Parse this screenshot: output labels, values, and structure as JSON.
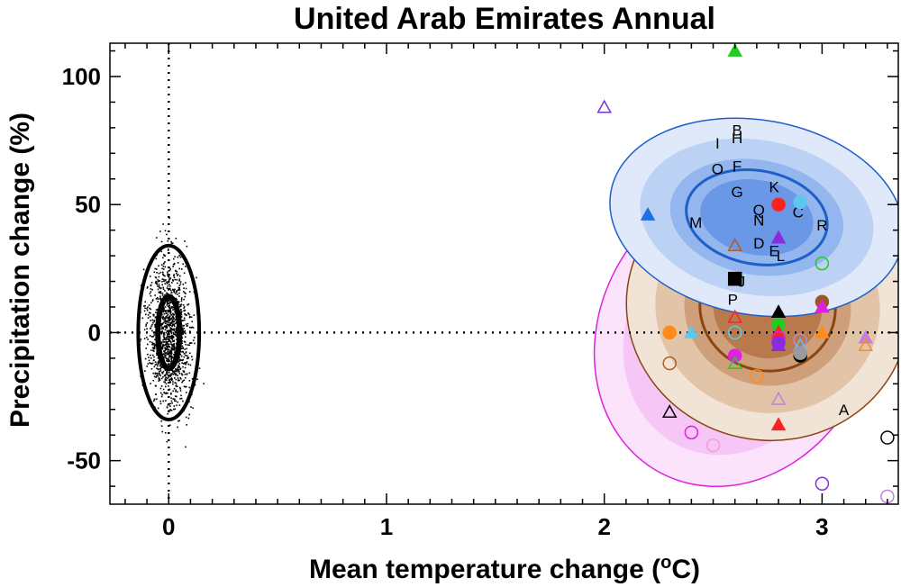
{
  "chart_data": {
    "type": "scatter",
    "title": "United Arab Emirates Annual",
    "xlabel": "Mean temperature change (",
    "xlabel_sup": "o",
    "xlabel_unit": "C)",
    "ylabel": "Precipitation change (%)",
    "xlim": [
      -0.27,
      3.35
    ],
    "ylim": [
      -67,
      113
    ],
    "x_ticks": [
      "0",
      "1",
      "2",
      "3"
    ],
    "y_ticks": [
      "-50",
      "0",
      "50",
      "100"
    ],
    "reference_lines": {
      "x": 0,
      "y": 0,
      "style": "dotted"
    },
    "natural_variability": {
      "center": [
        0,
        0
      ],
      "ellipse_inner": {
        "sx": 0.05,
        "sy": 14
      },
      "ellipse_outer": {
        "sx": 0.14,
        "sy": 34
      },
      "noise_sx": 0.05,
      "noise_sy": 14,
      "color": "#000000"
    },
    "ellipses": [
      {
        "name": "magenta",
        "cx": 2.6,
        "cy": 0,
        "rx": 0.62,
        "ry": 62,
        "rot": 28,
        "edge": "#e020e0",
        "fills": [
          "#fbe3fb",
          "#f6c6f6",
          "#f0a6f0",
          "#ea86ea"
        ]
      },
      {
        "name": "brown",
        "cx": 2.75,
        "cy": 10,
        "rx": 0.65,
        "ry": 52,
        "rot": 12,
        "edge": "#8b4513",
        "fills": [
          "#f1e3d6",
          "#e2c4a8",
          "#cf9f7a",
          "#b8794d"
        ]
      },
      {
        "name": "blue",
        "cx": 2.7,
        "cy": 45,
        "rx": 0.68,
        "ry": 38,
        "rot": 10,
        "edge": "#1e5fc8",
        "fills": [
          "#dfe9fa",
          "#bcd2f5",
          "#93b6ee",
          "#6b98e6"
        ]
      }
    ],
    "letters": [
      {
        "t": "B",
        "x": 2.61,
        "y": 79
      },
      {
        "t": "H",
        "x": 2.61,
        "y": 76
      },
      {
        "t": "I",
        "x": 2.52,
        "y": 74
      },
      {
        "t": "O",
        "x": 2.52,
        "y": 64
      },
      {
        "t": "F",
        "x": 2.61,
        "y": 65
      },
      {
        "t": "G",
        "x": 2.61,
        "y": 55
      },
      {
        "t": "K",
        "x": 2.78,
        "y": 57
      },
      {
        "t": "C",
        "x": 2.89,
        "y": 47
      },
      {
        "t": "Q",
        "x": 2.71,
        "y": 48
      },
      {
        "t": "N",
        "x": 2.71,
        "y": 44
      },
      {
        "t": "R",
        "x": 3.0,
        "y": 42
      },
      {
        "t": "M",
        "x": 2.42,
        "y": 43
      },
      {
        "t": "D",
        "x": 2.71,
        "y": 35
      },
      {
        "t": "E",
        "x": 2.78,
        "y": 32
      },
      {
        "t": "L",
        "x": 2.81,
        "y": 30
      },
      {
        "t": "J",
        "x": 2.63,
        "y": 20
      },
      {
        "t": "P",
        "x": 2.59,
        "y": 13
      },
      {
        "t": "A",
        "x": 3.1,
        "y": -30
      }
    ],
    "points": [
      {
        "x": 2.6,
        "y": 110,
        "shape": "triangle",
        "filled": true,
        "color": "#22cc22"
      },
      {
        "x": 2.0,
        "y": 88,
        "shape": "triangle",
        "filled": false,
        "color": "#7a2ee0"
      },
      {
        "x": 2.2,
        "y": 46,
        "shape": "triangle",
        "filled": true,
        "color": "#1e6fe0"
      },
      {
        "x": 2.8,
        "y": 50,
        "shape": "circle",
        "filled": true,
        "color": "#ff2020"
      },
      {
        "x": 2.9,
        "y": 51,
        "shape": "circle",
        "filled": true,
        "color": "#5cc8f0"
      },
      {
        "x": 2.8,
        "y": 37,
        "shape": "triangle",
        "filled": true,
        "color": "#8a2be2"
      },
      {
        "x": 2.6,
        "y": 34,
        "shape": "triangle",
        "filled": false,
        "color": "#b05a2a"
      },
      {
        "x": 3.0,
        "y": 27,
        "shape": "circle",
        "filled": false,
        "color": "#22cc22"
      },
      {
        "x": 2.6,
        "y": 21,
        "shape": "square",
        "filled": true,
        "color": "#000000"
      },
      {
        "x": 3.0,
        "y": 12,
        "shape": "circle",
        "filled": true,
        "color": "#a0522d"
      },
      {
        "x": 2.8,
        "y": 8,
        "shape": "triangle",
        "filled": true,
        "color": "#000000"
      },
      {
        "x": 3.0,
        "y": 10,
        "shape": "triangle",
        "filled": true,
        "color": "#e020e0"
      },
      {
        "x": 2.6,
        "y": 6,
        "shape": "triangle",
        "filled": false,
        "color": "#ff2020"
      },
      {
        "x": 2.8,
        "y": 3,
        "shape": "circle",
        "filled": true,
        "color": "#22cc22"
      },
      {
        "x": 2.8,
        "y": 0,
        "shape": "triangle",
        "filled": true,
        "color": "#ff2020"
      },
      {
        "x": 2.8,
        "y": -2,
        "shape": "circle",
        "filled": false,
        "color": "#e020e0"
      },
      {
        "x": 2.8,
        "y": -4,
        "shape": "circle",
        "filled": true,
        "color": "#8a2be2"
      },
      {
        "x": 2.8,
        "y": -5,
        "shape": "triangle",
        "filled": true,
        "color": "#8a2be2"
      },
      {
        "x": 2.3,
        "y": 0,
        "shape": "circle",
        "filled": true,
        "color": "#ff8c1a"
      },
      {
        "x": 2.4,
        "y": 0,
        "shape": "triangle",
        "filled": true,
        "color": "#5cc8f0"
      },
      {
        "x": 2.6,
        "y": 0,
        "shape": "circle",
        "filled": false,
        "color": "#5cc8f0"
      },
      {
        "x": 3.0,
        "y": 0,
        "shape": "triangle",
        "filled": true,
        "color": "#ff8c1a"
      },
      {
        "x": 3.2,
        "y": -2,
        "shape": "triangle",
        "filled": true,
        "color": "#c080e0"
      },
      {
        "x": 3.2,
        "y": -5,
        "shape": "triangle",
        "filled": false,
        "color": "#ff8c1a"
      },
      {
        "x": 2.9,
        "y": -3,
        "shape": "circle",
        "filled": false,
        "color": "#c080e0"
      },
      {
        "x": 2.9,
        "y": -5,
        "shape": "triangle",
        "filled": false,
        "color": "#5cc8f0"
      },
      {
        "x": 2.9,
        "y": -9,
        "shape": "circle",
        "filled": true,
        "color": "#000000"
      },
      {
        "x": 2.9,
        "y": -8,
        "shape": "circle",
        "filled": true,
        "color": "#9a9a9a"
      },
      {
        "x": 2.6,
        "y": -9,
        "shape": "circle",
        "filled": true,
        "color": "#e020e0"
      },
      {
        "x": 2.6,
        "y": -12,
        "shape": "triangle",
        "filled": false,
        "color": "#22cc22"
      },
      {
        "x": 2.3,
        "y": -12,
        "shape": "circle",
        "filled": false,
        "color": "#b05a2a"
      },
      {
        "x": 2.7,
        "y": -17,
        "shape": "circle",
        "filled": false,
        "color": "#ff8c1a"
      },
      {
        "x": 2.8,
        "y": -26,
        "shape": "triangle",
        "filled": false,
        "color": "#c080e0"
      },
      {
        "x": 2.3,
        "y": -31,
        "shape": "triangle",
        "filled": false,
        "color": "#000000"
      },
      {
        "x": 2.8,
        "y": -36,
        "shape": "triangle",
        "filled": true,
        "color": "#ff2020"
      },
      {
        "x": 2.4,
        "y": -39,
        "shape": "circle",
        "filled": false,
        "color": "#e020e0"
      },
      {
        "x": 2.5,
        "y": -44,
        "shape": "circle",
        "filled": false,
        "color": "#f0a0d0"
      },
      {
        "x": 3.3,
        "y": -41,
        "shape": "circle",
        "filled": false,
        "color": "#000000"
      },
      {
        "x": 3.0,
        "y": -59,
        "shape": "circle",
        "filled": false,
        "color": "#8a2be2"
      },
      {
        "x": 3.3,
        "y": -64,
        "shape": "circle",
        "filled": false,
        "color": "#c080e0"
      }
    ]
  }
}
